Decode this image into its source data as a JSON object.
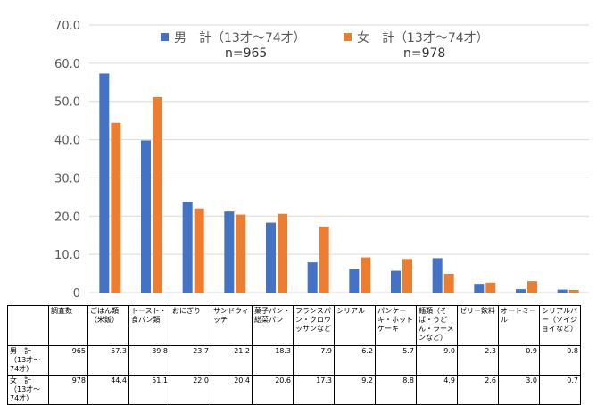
{
  "chart_data": {
    "type": "bar",
    "categories": [
      "ごはん類（米飯）",
      "トースト・食パン類",
      "おにぎり",
      "サンドウィッチ",
      "菓子パン・総菜パン",
      "フランスパン・クロワッサンなど",
      "シリアル",
      "パンケーキ・ホットケーキ",
      "麺類（そば・うどん・ラーメンなど）",
      "ゼリー飲料",
      "オートミール",
      "シリアルバー（ソイジョイなど）"
    ],
    "series": [
      {
        "name": "男　計（13才～74才）",
        "n_label": "n=965",
        "color": "#4472C4",
        "values": [
          57.3,
          39.8,
          23.7,
          21.2,
          18.3,
          7.9,
          6.2,
          5.7,
          9.0,
          2.3,
          0.9,
          0.8
        ]
      },
      {
        "name": "女　計（13才～74才）",
        "n_label": "n=978",
        "color": "#ED7D31",
        "values": [
          44.4,
          51.1,
          22.0,
          20.4,
          20.6,
          17.3,
          9.2,
          8.8,
          4.9,
          2.6,
          3.0,
          0.7
        ]
      }
    ],
    "ylim": [
      0,
      70
    ],
    "yticks": [
      "0",
      "10.0",
      "20.0",
      "30.0",
      "40.0",
      "50.0",
      "60.0",
      "70.0"
    ],
    "grid": true,
    "legend": "top-center"
  },
  "table": {
    "header": [
      "",
      "調査数",
      "ごはん類（米飯）",
      "トースト・食パン類",
      "おにぎり",
      "サンドウィッチ",
      "菓子パン・総菜パン",
      "フランスパン・クロワッサンなど",
      "シリアル",
      "パンケーキ・ホットケーキ",
      "麺類（そば・うどん・ラーメンなど）",
      "ゼリー飲料",
      "オートミール",
      "シリアルバー（ソイジョイなど）"
    ],
    "rows": [
      [
        "男　計（13才～74才）",
        "965",
        "57.3",
        "39.8",
        "23.7",
        "21.2",
        "18.3",
        "7.9",
        "6.2",
        "5.7",
        "9.0",
        "2.3",
        "0.9",
        "0.8"
      ],
      [
        "女　計（13才～74才）",
        "978",
        "44.4",
        "51.1",
        "22.0",
        "20.4",
        "20.6",
        "17.3",
        "9.2",
        "8.8",
        "4.9",
        "2.6",
        "3.0",
        "0.7"
      ]
    ]
  }
}
